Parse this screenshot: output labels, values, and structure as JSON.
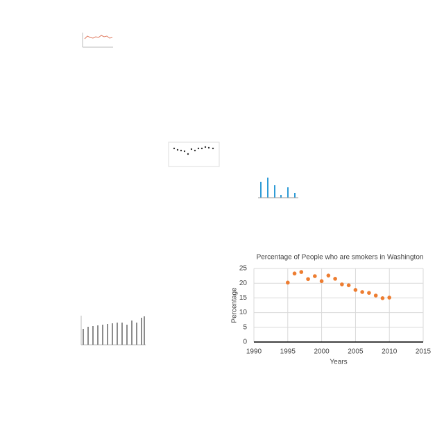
{
  "chart_data": {
    "type": "scatter",
    "title": "Percentage of People who are smokers in Washington",
    "xlabel": "Years",
    "ylabel": "Percentage",
    "color": "#ed7d31",
    "x": [
      1995,
      1996,
      1997,
      1998,
      1999,
      2000,
      2001,
      2002,
      2003,
      2004,
      2005,
      2006,
      2007,
      2008,
      2009,
      2010
    ],
    "values": [
      20.2,
      23.3,
      23.8,
      21.4,
      22.4,
      20.7,
      22.6,
      21.5,
      19.6,
      19.3,
      17.7,
      17.0,
      16.7,
      15.8,
      14.9,
      15.1
    ],
    "xlim": [
      1990,
      2015
    ],
    "xticks": [
      1990,
      1995,
      2000,
      2005,
      2010,
      2015
    ],
    "ylim": [
      0,
      25
    ],
    "yticks": [
      0,
      5,
      10,
      15,
      20,
      25
    ],
    "grid": true
  }
}
